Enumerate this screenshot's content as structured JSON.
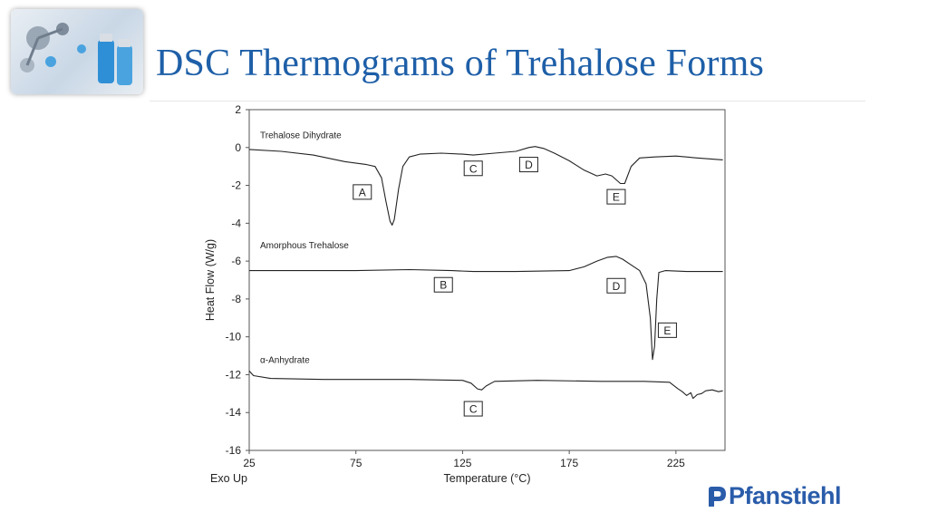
{
  "slide": {
    "title": "DSC Thermograms of Trehalose Forms",
    "brand": "Pfanstiehl"
  },
  "chart_data": {
    "type": "line",
    "xlabel": "Temperature (°C)",
    "ylabel": "Heat Flow (W/g)",
    "corner_label": "Exo Up",
    "xlim": [
      25,
      248
    ],
    "ylim": [
      -16,
      2
    ],
    "xticks": [
      25,
      75,
      125,
      175,
      225
    ],
    "yticks": [
      2,
      0,
      -2,
      -4,
      -6,
      -8,
      -10,
      -12,
      -14,
      -16
    ],
    "grid": false,
    "series": [
      {
        "name": "Trehalose Dihydrate",
        "points": [
          [
            25,
            -0.1
          ],
          [
            40,
            -0.2
          ],
          [
            55,
            -0.4
          ],
          [
            70,
            -0.75
          ],
          [
            80,
            -0.9
          ],
          [
            84,
            -1.0
          ],
          [
            87,
            -1.6
          ],
          [
            89,
            -2.8
          ],
          [
            91,
            -3.9
          ],
          [
            92,
            -4.1
          ],
          [
            93,
            -3.8
          ],
          [
            95,
            -2.2
          ],
          [
            97,
            -1.0
          ],
          [
            100,
            -0.5
          ],
          [
            105,
            -0.35
          ],
          [
            115,
            -0.3
          ],
          [
            125,
            -0.35
          ],
          [
            130,
            -0.4
          ],
          [
            140,
            -0.3
          ],
          [
            150,
            -0.2
          ],
          [
            156,
            0.0
          ],
          [
            159,
            0.05
          ],
          [
            163,
            -0.05
          ],
          [
            168,
            -0.3
          ],
          [
            175,
            -0.7
          ],
          [
            182,
            -1.2
          ],
          [
            188,
            -1.5
          ],
          [
            192,
            -1.4
          ],
          [
            195,
            -1.5
          ],
          [
            199,
            -1.9
          ],
          [
            201,
            -1.9
          ],
          [
            204,
            -1.0
          ],
          [
            208,
            -0.55
          ],
          [
            215,
            -0.5
          ],
          [
            225,
            -0.45
          ],
          [
            235,
            -0.55
          ],
          [
            247,
            -0.65
          ]
        ]
      },
      {
        "name": "Amorphous Trehalose",
        "points": [
          [
            25,
            -6.5
          ],
          [
            50,
            -6.5
          ],
          [
            75,
            -6.5
          ],
          [
            100,
            -6.45
          ],
          [
            120,
            -6.5
          ],
          [
            130,
            -6.55
          ],
          [
            150,
            -6.55
          ],
          [
            175,
            -6.5
          ],
          [
            182,
            -6.3
          ],
          [
            188,
            -6.0
          ],
          [
            193,
            -5.8
          ],
          [
            197,
            -5.75
          ],
          [
            200,
            -5.9
          ],
          [
            204,
            -6.2
          ],
          [
            208,
            -6.5
          ],
          [
            211,
            -7.2
          ],
          [
            213,
            -9.0
          ],
          [
            214,
            -11.2
          ],
          [
            215,
            -10.5
          ],
          [
            216,
            -8.0
          ],
          [
            217,
            -6.6
          ],
          [
            220,
            -6.5
          ],
          [
            230,
            -6.55
          ],
          [
            247,
            -6.55
          ]
        ]
      },
      {
        "name": "α-Anhydrate",
        "points": [
          [
            25,
            -11.8
          ],
          [
            27,
            -12.05
          ],
          [
            35,
            -12.2
          ],
          [
            60,
            -12.25
          ],
          [
            100,
            -12.25
          ],
          [
            125,
            -12.3
          ],
          [
            129,
            -12.45
          ],
          [
            132,
            -12.75
          ],
          [
            134,
            -12.8
          ],
          [
            136,
            -12.6
          ],
          [
            140,
            -12.35
          ],
          [
            160,
            -12.3
          ],
          [
            190,
            -12.35
          ],
          [
            210,
            -12.35
          ],
          [
            222,
            -12.4
          ],
          [
            226,
            -12.75
          ],
          [
            228,
            -12.9
          ],
          [
            230,
            -13.1
          ],
          [
            232,
            -12.95
          ],
          [
            233,
            -13.25
          ],
          [
            235,
            -13.05
          ],
          [
            237,
            -13.0
          ],
          [
            239,
            -12.85
          ],
          [
            242,
            -12.8
          ],
          [
            245,
            -12.9
          ],
          [
            247,
            -12.85
          ]
        ]
      }
    ],
    "annotations": [
      {
        "label": "A",
        "x": 78,
        "y": -2.35
      },
      {
        "label": "C",
        "x": 130,
        "y": -1.1
      },
      {
        "label": "D",
        "x": 156,
        "y": -0.9
      },
      {
        "label": "E",
        "x": 197,
        "y": -2.6
      },
      {
        "label": "B",
        "x": 116,
        "y": -7.25
      },
      {
        "label": "D",
        "x": 197,
        "y": -7.3
      },
      {
        "label": "E",
        "x": 221,
        "y": -9.65
      },
      {
        "label": "C",
        "x": 130,
        "y": -13.8
      }
    ]
  }
}
